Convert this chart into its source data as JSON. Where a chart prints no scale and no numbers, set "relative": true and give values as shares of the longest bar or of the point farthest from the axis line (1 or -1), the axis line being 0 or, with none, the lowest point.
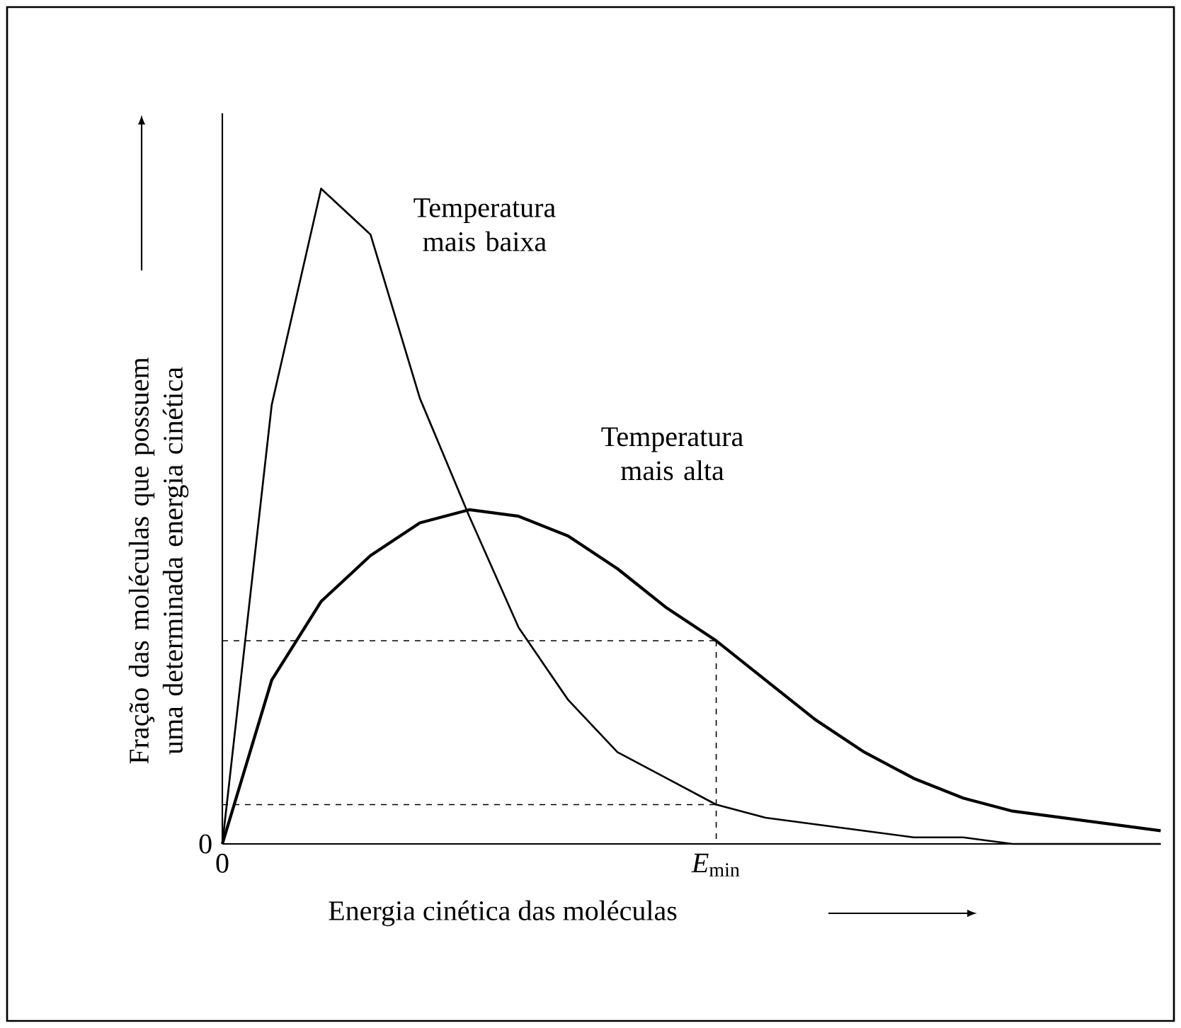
{
  "chart_data": {
    "type": "line",
    "relative": true,
    "xlabel": "Energia cinética das moléculas",
    "ylabel": "Fração das moléculas que possuem uma determinada energia cinética",
    "marker": "none",
    "annotations": [
      "0",
      "0",
      "*E*$_{min}$"
    ],
    "categories": [
      null,
      null,
      null,
      null,
      null,
      null,
      null,
      null,
      null,
      null,
      null,
      null,
      null,
      null,
      null,
      null,
      null,
      null,
      null,
      null
    ],
    "series": [
      {
        "name": "Temperatura mais baixa",
        "color": "#000000",
        "line_style": "solid",
        "values": [
          0,
          0.67,
          1,
          0.93,
          0.68,
          0.5,
          0.33,
          0.22,
          0.14,
          0.1,
          0.06,
          0.04,
          0.03,
          0.02,
          0.01,
          0.01,
          0,
          0,
          0,
          0
        ]
      },
      {
        "name": "Temperatura mais alta",
        "color": "#000000",
        "line_style": "solid",
        "values": [
          0,
          0.25,
          0.37,
          0.44,
          0.49,
          0.51,
          0.5,
          0.47,
          0.42,
          0.36,
          0.31,
          0.25,
          0.19,
          0.14,
          0.1,
          0.07,
          0.05,
          0.04,
          0.03,
          0.02
        ]
      }
    ],
    "ref_lines": [
      {
        "axis": "y",
        "value": 0.31,
        "color": "#000000",
        "line_style": "dashed"
      },
      {
        "axis": "y",
        "value": 0.06,
        "color": "#000000",
        "line_style": "dashed"
      }
    ]
  }
}
